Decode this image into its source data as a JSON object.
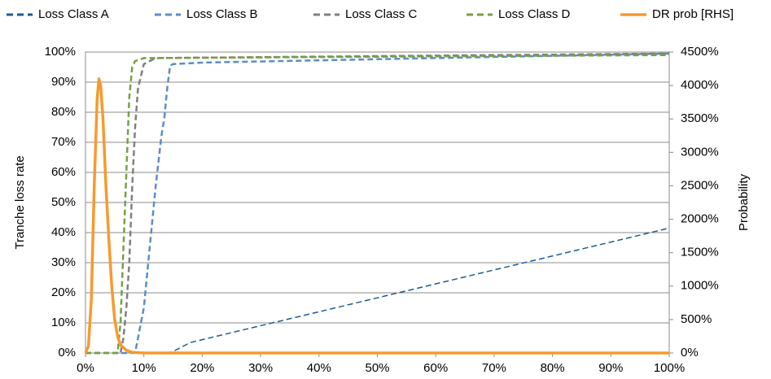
{
  "chart_data": {
    "type": "line",
    "y_axis_title": "Tranche loss rate",
    "y2_axis_title": "Probability",
    "xlim": [
      0,
      100
    ],
    "xticks": [
      {
        "value": 0,
        "label": "0%"
      },
      {
        "value": 10,
        "label": "10%"
      },
      {
        "value": 20,
        "label": "20%"
      },
      {
        "value": 30,
        "label": "30%"
      },
      {
        "value": 40,
        "label": "40%"
      },
      {
        "value": 50,
        "label": "50%"
      },
      {
        "value": 60,
        "label": "60%"
      },
      {
        "value": 70,
        "label": "70%"
      },
      {
        "value": 80,
        "label": "80%"
      },
      {
        "value": 90,
        "label": "90%"
      },
      {
        "value": 100,
        "label": "100%"
      }
    ],
    "ylim": [
      0,
      100
    ],
    "yticks": [
      {
        "value": 0,
        "label": "0%"
      },
      {
        "value": 10,
        "label": "10%"
      },
      {
        "value": 20,
        "label": "20%"
      },
      {
        "value": 30,
        "label": "30%"
      },
      {
        "value": 40,
        "label": "40%"
      },
      {
        "value": 50,
        "label": "50%"
      },
      {
        "value": 60,
        "label": "60%"
      },
      {
        "value": 70,
        "label": "70%"
      },
      {
        "value": 80,
        "label": "80%"
      },
      {
        "value": 90,
        "label": "90%"
      },
      {
        "value": 100,
        "label": "100%"
      }
    ],
    "y2lim": [
      0,
      4500
    ],
    "y2ticks": [
      {
        "value": 0,
        "label": "0%"
      },
      {
        "value": 500,
        "label": "500%"
      },
      {
        "value": 1000,
        "label": "1000%"
      },
      {
        "value": 1500,
        "label": "1500%"
      },
      {
        "value": 2000,
        "label": "2000%"
      },
      {
        "value": 2500,
        "label": "2500%"
      },
      {
        "value": 3000,
        "label": "3000%"
      },
      {
        "value": 3500,
        "label": "3500%"
      },
      {
        "value": 4000,
        "label": "4000%"
      },
      {
        "value": 4500,
        "label": "4500%"
      }
    ],
    "grid": true,
    "legend": "top",
    "series": [
      {
        "name": "Loss Class A",
        "color": "#1f5a96",
        "line_style": "dashed",
        "line_width": 1.5,
        "x": [
          0,
          14,
          15,
          16,
          17,
          18,
          100
        ],
        "values": [
          0,
          0,
          0.5,
          1.5,
          2.5,
          3.5,
          41.5
        ]
      },
      {
        "name": "Loss Class B",
        "color": "#5b8ec9",
        "line_style": "dashed",
        "line_width": 2.5,
        "x": [
          0,
          8.5,
          9,
          10,
          11,
          12,
          13,
          13.5,
          14,
          14.5,
          15,
          20,
          100
        ],
        "values": [
          0,
          0,
          5,
          15,
          35,
          55,
          72,
          78,
          88,
          95.5,
          96,
          96.5,
          99.5
        ]
      },
      {
        "name": "Loss Class C",
        "color": "#808080",
        "line_style": "dashed",
        "line_width": 2.5,
        "x": [
          0,
          6,
          6.5,
          7,
          7.5,
          8,
          8.5,
          9,
          10,
          11,
          12,
          100
        ],
        "values": [
          0,
          0,
          5,
          15,
          30,
          55,
          75,
          88,
          96,
          97,
          98,
          99.5
        ]
      },
      {
        "name": "Loss Class D",
        "color": "#77a043",
        "line_style": "dashed",
        "line_width": 2.5,
        "x": [
          0,
          5.5,
          6,
          6.5,
          7,
          7.5,
          8,
          8.5,
          10,
          100
        ],
        "values": [
          0,
          0,
          10,
          35,
          60,
          85,
          95,
          97,
          98,
          99
        ]
      },
      {
        "name": "DR prob [RHS]",
        "color": "#f79a2e",
        "line_style": "solid",
        "line_width": 3.5,
        "axis": "y2",
        "x": [
          0,
          0.5,
          1,
          1.5,
          2,
          2.3,
          2.6,
          3,
          3.5,
          4,
          4.5,
          5,
          5.5,
          6,
          7,
          8,
          10,
          100
        ],
        "values": [
          0,
          100,
          800,
          2500,
          3800,
          4100,
          4000,
          3500,
          2500,
          1700,
          1000,
          500,
          250,
          120,
          40,
          10,
          0,
          0
        ]
      }
    ]
  }
}
